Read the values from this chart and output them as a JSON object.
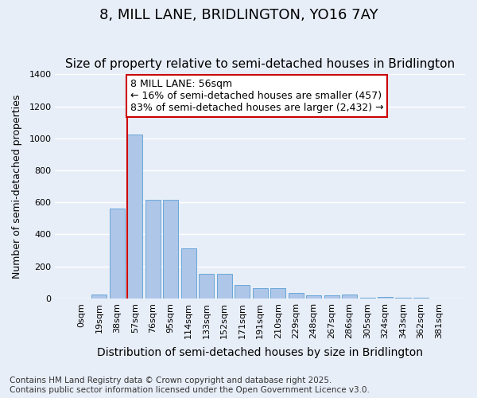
{
  "title": "8, MILL LANE, BRIDLINGTON, YO16 7AY",
  "subtitle": "Size of property relative to semi-detached houses in Bridlington",
  "xlabel": "Distribution of semi-detached houses by size in Bridlington",
  "ylabel": "Number of semi-detached properties",
  "footnote": "Contains HM Land Registry data © Crown copyright and database right 2025.\nContains public sector information licensed under the Open Government Licence v3.0.",
  "bar_values": [
    0,
    25,
    560,
    1025,
    615,
    615,
    315,
    155,
    155,
    85,
    65,
    65,
    35,
    20,
    20,
    25,
    5,
    10,
    5,
    5,
    0
  ],
  "bar_labels": [
    "0sqm",
    "19sqm",
    "38sqm",
    "57sqm",
    "76sqm",
    "95sqm",
    "114sqm",
    "133sqm",
    "152sqm",
    "171sqm",
    "191sqm",
    "210sqm",
    "229sqm",
    "248sqm",
    "267sqm",
    "286sqm",
    "305sqm",
    "324sqm",
    "343sqm",
    "362sqm",
    "381sqm"
  ],
  "bar_color": "#aec6e8",
  "bar_edge_color": "#5a9fd4",
  "background_color": "#e8eef8",
  "grid_color": "#ffffff",
  "annotation_text": "8 MILL LANE: 56sqm\n← 16% of semi-detached houses are smaller (457)\n83% of semi-detached houses are larger (2,432) →",
  "annotation_box_color": "#ffffff",
  "annotation_box_edge": "#cc0000",
  "vline_color": "#cc0000",
  "ylim": [
    0,
    1400
  ],
  "yticks": [
    0,
    200,
    400,
    600,
    800,
    1000,
    1200,
    1400
  ],
  "title_fontsize": 13,
  "subtitle_fontsize": 11,
  "xlabel_fontsize": 10,
  "ylabel_fontsize": 9,
  "tick_fontsize": 8,
  "annotation_fontsize": 9,
  "footnote_fontsize": 7.5
}
